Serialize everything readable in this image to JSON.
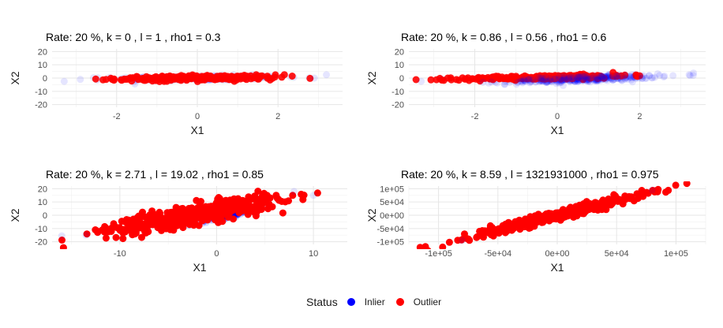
{
  "legend": {
    "title": "Status",
    "items": [
      {
        "label": "Inlier",
        "color": "#0000ff"
      },
      {
        "label": "Outlier",
        "color": "#ff0000"
      }
    ]
  },
  "chart_data": [
    {
      "type": "scatter",
      "title": "Rate: 20 %, k = 0 , l = 1 , rho1 = 0.3",
      "xlabel": "X1",
      "ylabel": "X2",
      "xlim": [
        -3.6,
        3.6
      ],
      "ylim": [
        -22,
        22
      ],
      "xticks": [
        -2,
        0,
        2
      ],
      "xtick_labels": [
        "-2",
        "0",
        "2"
      ],
      "yticks": [
        -20,
        -10,
        0,
        10,
        20
      ],
      "ytick_labels": [
        "-20",
        "-10",
        "0",
        "10",
        "20"
      ],
      "grid": true,
      "inlier_cloud": {
        "x_mean": 0,
        "x_sd": 1,
        "y_mean": 0,
        "y_sd": 1,
        "rho": 0.3
      },
      "outlier_cloud": {
        "x_mean": 0,
        "x_sd": 1,
        "y_mean": 0,
        "y_sd": 1,
        "rho": 0.3
      },
      "visible_extremes": [
        [
          -3.3,
          -2.5
        ],
        [
          -2.9,
          -1
        ],
        [
          3.2,
          2.5
        ],
        [
          2.9,
          0
        ]
      ]
    },
    {
      "type": "scatter",
      "title": "Rate: 20 %, k = 0.86 , l = 0.56 , rho1 = 0.6",
      "xlabel": "X1",
      "ylabel": "X2",
      "xlim": [
        -3.6,
        3.6
      ],
      "ylim": [
        -22,
        22
      ],
      "xticks": [
        -2,
        0,
        2
      ],
      "xtick_labels": [
        "-2",
        "0",
        "2"
      ],
      "yticks": [
        -20,
        -10,
        0,
        10,
        20
      ],
      "ytick_labels": [
        "-20",
        "-10",
        "0",
        "10",
        "20"
      ],
      "grid": true,
      "inlier_cloud": {
        "x_mean": 0.6,
        "x_sd": 0.9,
        "y_mean": -0.5,
        "y_sd": 1.5,
        "rho": 0.6
      },
      "outlier_cloud": {
        "x_mean": -0.3,
        "x_sd": 1.0,
        "y_mean": 0.5,
        "y_sd": 1.0,
        "rho": 0.6
      },
      "visible_extremes": [
        [
          -3.3,
          -2.5
        ],
        [
          -2.8,
          -1
        ],
        [
          3.2,
          2.5
        ],
        [
          2.6,
          1.5
        ],
        [
          -2.8,
          -1.5
        ]
      ]
    },
    {
      "type": "scatter",
      "title": "Rate: 20 %, k = 2.71 , l = 19.02 , rho1 = 0.85",
      "xlabel": "X1",
      "ylabel": "X2",
      "xlim": [
        -17,
        13.5
      ],
      "ylim": [
        -22,
        22
      ],
      "xticks": [
        -10,
        0,
        10
      ],
      "xtick_labels": [
        "-10",
        "0",
        "10"
      ],
      "yticks": [
        -20,
        -10,
        0,
        10,
        20
      ],
      "ytick_labels": [
        "-20",
        "-10",
        "0",
        "10",
        "20"
      ],
      "grid": true,
      "inlier_cloud": {
        "x_mean": 1.0,
        "x_sd": 1.2,
        "y_mean": 0,
        "y_sd": 2.0,
        "rho": 0.85
      },
      "outlier_cloud": {
        "x_mean": -2.5,
        "x_sd": 4.5,
        "y_mean": 0,
        "y_sd": 7.0,
        "rho": 0.85
      },
      "visible_extremes": [
        [
          -16,
          -15.5
        ],
        [
          10,
          15
        ],
        [
          -13.5,
          -15
        ],
        [
          8,
          18
        ]
      ]
    },
    {
      "type": "scatter",
      "title": "Rate: 20 %, k = 8.59 , l = 1321931000 , rho1 = 0.975",
      "xlabel": "X1",
      "ylabel": "X2",
      "xlim": [
        -125000,
        125000
      ],
      "ylim": [
        -110000,
        110000
      ],
      "xticks": [
        -100000,
        -50000,
        0,
        50000,
        100000
      ],
      "xtick_labels": [
        "-1e+05",
        "-5e+04",
        "0e+00",
        "5e+04",
        "1e+05"
      ],
      "yticks": [
        -100000,
        -50000,
        0,
        50000,
        100000
      ],
      "ytick_labels": [
        "-1e+05",
        "-5e+04",
        "0e+00",
        "5e+04",
        "1e+05"
      ],
      "grid": true,
      "inlier_cloud": {
        "x_mean": 0,
        "x_sd": 400,
        "y_mean": 0,
        "y_sd": 400,
        "rho": 0.975
      },
      "outlier_cloud": {
        "x_mean": 0,
        "x_sd": 36000,
        "y_mean": 0,
        "y_sd": 40000,
        "rho": 0.975
      },
      "visible_extremes": [
        [
          -80000,
          -95000
        ],
        [
          80000,
          95000
        ]
      ]
    }
  ]
}
